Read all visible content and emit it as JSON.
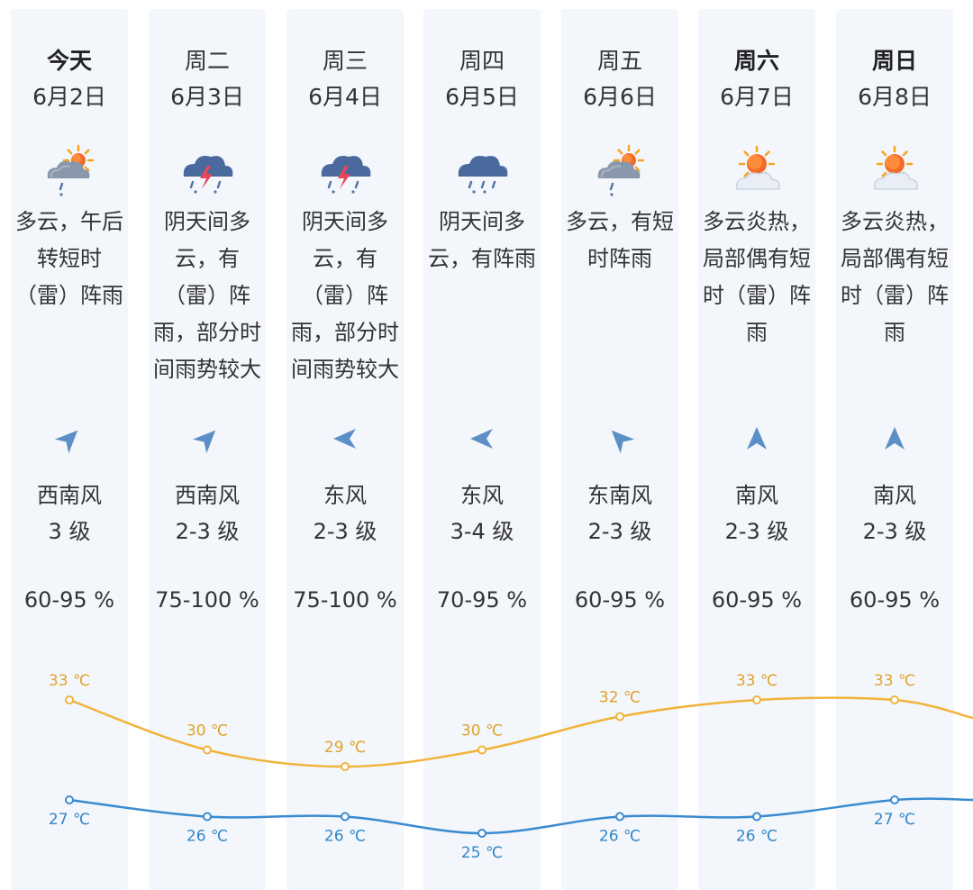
{
  "colors": {
    "high_line": "#f1b43a",
    "high_label": "#e1a22a",
    "low_line": "#3a8bd0",
    "low_label": "#3187c8",
    "arrow": "#5b8fc6",
    "column_bg": "#f3f6fb"
  },
  "days": [
    {
      "weekday": "今天",
      "weekday_bold": true,
      "date": "6月2日",
      "icon": "cloud-sun-rain-icon",
      "desc_lines": [
        "多云，午后",
        "转短时",
        "（雷）阵雨"
      ],
      "wind_dir": "西南风",
      "wind_level": "3 级",
      "wind_arrow_deg": 45,
      "humidity": "60-95 %"
    },
    {
      "weekday": "周二",
      "weekday_bold": false,
      "date": "6月3日",
      "icon": "thunderstorm-icon",
      "desc_lines": [
        "阴天间多",
        "云，有",
        "（雷）阵",
        "雨，部分时",
        "间雨势较大"
      ],
      "wind_dir": "西南风",
      "wind_level": "2-3 级",
      "wind_arrow_deg": 45,
      "humidity": "75-100 %"
    },
    {
      "weekday": "周三",
      "weekday_bold": false,
      "date": "6月4日",
      "icon": "thunderstorm-icon",
      "desc_lines": [
        "阴天间多",
        "云，有",
        "（雷）阵",
        "雨，部分时",
        "间雨势较大"
      ],
      "wind_dir": "东风",
      "wind_level": "2-3 级",
      "wind_arrow_deg": -90,
      "humidity": "75-100 %"
    },
    {
      "weekday": "周四",
      "weekday_bold": false,
      "date": "6月5日",
      "icon": "rain-cloud-icon",
      "desc_lines": [
        "阴天间多",
        "云，有阵雨"
      ],
      "wind_dir": "东风",
      "wind_level": "3-4 级",
      "wind_arrow_deg": -90,
      "humidity": "70-95 %"
    },
    {
      "weekday": "周五",
      "weekday_bold": false,
      "date": "6月6日",
      "icon": "cloud-sun-rain-icon",
      "desc_lines": [
        "多云，有短",
        "时阵雨"
      ],
      "wind_dir": "东南风",
      "wind_level": "2-3 级",
      "wind_arrow_deg": -45,
      "humidity": "60-95 %"
    },
    {
      "weekday": "周六",
      "weekday_bold": true,
      "date": "6月7日",
      "icon": "sun-cloud-icon",
      "desc_lines": [
        "多云炎热，",
        "局部偶有短",
        "时（雷）阵",
        "雨"
      ],
      "wind_dir": "南风",
      "wind_level": "2-3 级",
      "wind_arrow_deg": 0,
      "humidity": "60-95 %"
    },
    {
      "weekday": "周日",
      "weekday_bold": true,
      "date": "6月8日",
      "icon": "sun-cloud-icon",
      "desc_lines": [
        "多云炎热，",
        "局部偶有短",
        "时（雷）阵",
        "雨"
      ],
      "wind_dir": "南风",
      "wind_level": "2-3 级",
      "wind_arrow_deg": 0,
      "humidity": "60-95 %"
    }
  ],
  "chart_data": {
    "type": "line",
    "categories": [
      "6月2日",
      "6月3日",
      "6月4日",
      "6月5日",
      "6月6日",
      "6月7日",
      "6月8日"
    ],
    "series": [
      {
        "values": [
          33,
          30,
          29,
          30,
          32,
          33,
          33
        ],
        "labels": [
          "33 ℃",
          "30 ℃",
          "29 ℃",
          "30 ℃",
          "32 ℃",
          "33 ℃",
          "33 ℃"
        ]
      },
      {
        "values": [
          27,
          26,
          26,
          25,
          26,
          26,
          27
        ],
        "labels": [
          "27 ℃",
          "26 ℃",
          "26 ℃",
          "25 ℃",
          "26 ℃",
          "26 ℃",
          "27 ℃"
        ]
      }
    ],
    "ylim": [
      25,
      33
    ]
  }
}
